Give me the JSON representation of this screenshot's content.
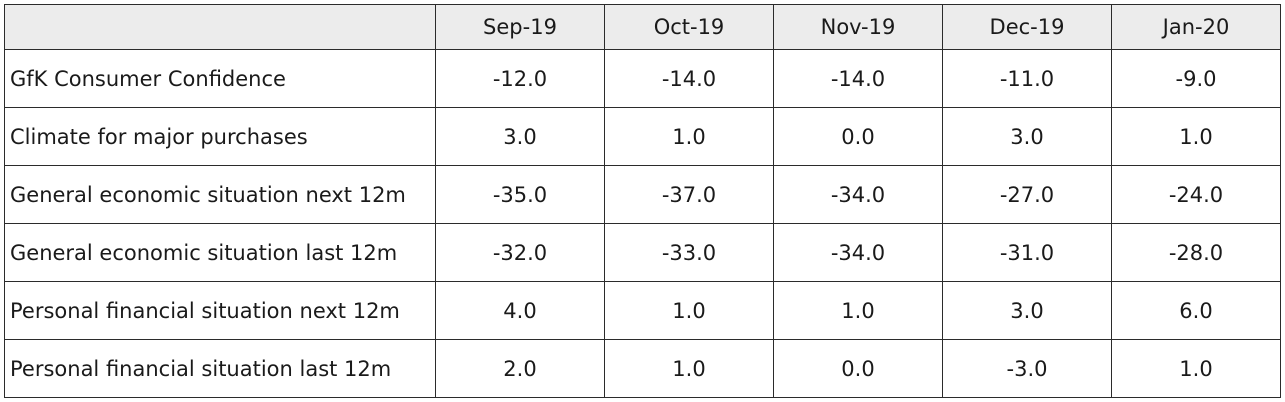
{
  "chart_data": {
    "type": "table",
    "columns": [
      "Sep-19",
      "Oct-19",
      "Nov-19",
      "Dec-19",
      "Jan-20"
    ],
    "rows": [
      {
        "label": "GfK Consumer Confidence",
        "values": [
          "-12.0",
          "-14.0",
          "-14.0",
          "-11.0",
          "-9.0"
        ]
      },
      {
        "label": "Climate for major purchases",
        "values": [
          "3.0",
          "1.0",
          "0.0",
          "3.0",
          "1.0"
        ]
      },
      {
        "label": "General economic situation next 12m",
        "values": [
          "-35.0",
          "-37.0",
          "-34.0",
          "-27.0",
          "-24.0"
        ]
      },
      {
        "label": "General economic situation last 12m",
        "values": [
          "-32.0",
          "-33.0",
          "-34.0",
          "-31.0",
          "-28.0"
        ]
      },
      {
        "label": "Personal financial situation next 12m",
        "values": [
          "4.0",
          "1.0",
          "1.0",
          "3.0",
          "6.0"
        ]
      },
      {
        "label": "Personal financial situation last 12m",
        "values": [
          "2.0",
          "1.0",
          "0.0",
          "-3.0",
          "1.0"
        ]
      }
    ]
  },
  "colors": {
    "header_bg": "#ececec",
    "border": "#2b2b2b",
    "text": "#1a1a1a"
  }
}
